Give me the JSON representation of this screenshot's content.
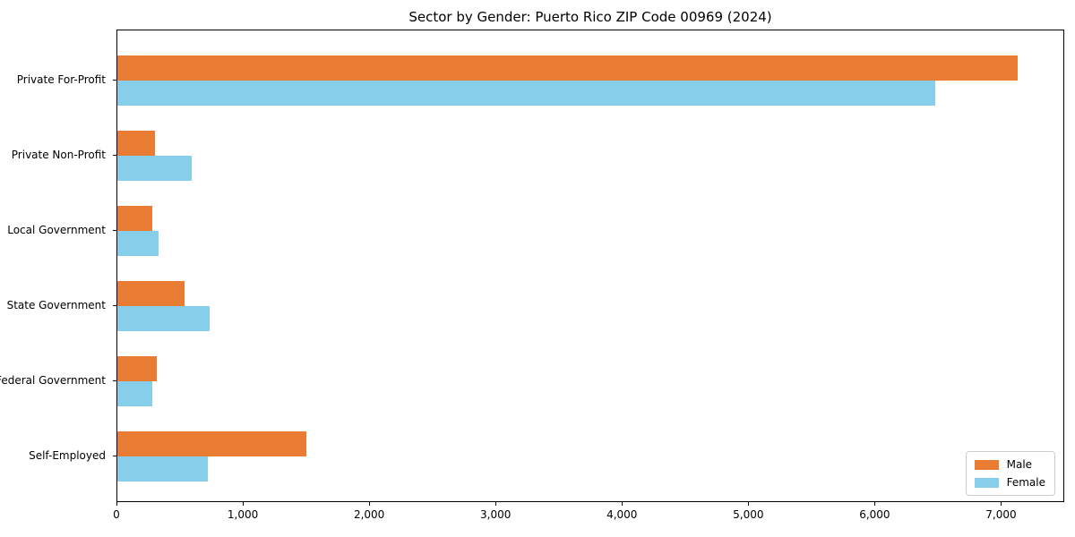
{
  "chart_data": {
    "type": "bar",
    "orientation": "horizontal",
    "title": "Sector by Gender: Puerto Rico ZIP Code 00969 (2024)",
    "xlabel": "",
    "ylabel": "",
    "categories": [
      "Private For-Profit",
      "Private Non-Profit",
      "Local Government",
      "State Government",
      "Federal Government",
      "Self-Employed"
    ],
    "series": [
      {
        "name": "Male",
        "color": "#e87c33",
        "values": [
          7140,
          295,
          275,
          530,
          310,
          1500
        ]
      },
      {
        "name": "Female",
        "color": "#87ceeb",
        "values": [
          6485,
          590,
          325,
          735,
          280,
          720
        ]
      }
    ],
    "xlim": [
      0,
      7500
    ],
    "x_ticks": [
      {
        "value": 0,
        "label": "0"
      },
      {
        "value": 1000,
        "label": "1,000"
      },
      {
        "value": 2000,
        "label": "2,000"
      },
      {
        "value": 3000,
        "label": "3,000"
      },
      {
        "value": 4000,
        "label": "4,000"
      },
      {
        "value": 5000,
        "label": "5,000"
      },
      {
        "value": 6000,
        "label": "6,000"
      },
      {
        "value": 7000,
        "label": "7,000"
      }
    ],
    "grid": false,
    "legend_position": "lower right"
  }
}
